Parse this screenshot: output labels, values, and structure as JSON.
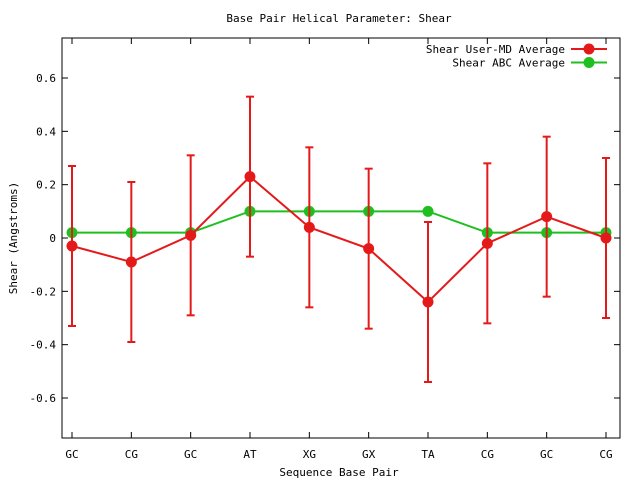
{
  "chart_data": {
    "type": "line",
    "title": "Base Pair Helical Parameter: Shear",
    "xlabel": "Sequence Base Pair",
    "ylabel": "Shear (Angstroms)",
    "categories": [
      "GC",
      "CG",
      "GC",
      "AT",
      "XG",
      "GX",
      "TA",
      "CG",
      "GC",
      "CG"
    ],
    "ylim": [
      -0.75,
      0.75
    ],
    "yticks": [
      -0.6,
      -0.4,
      -0.2,
      0,
      0.2,
      0.4,
      0.6
    ],
    "ytick_labels": [
      "-0.6",
      "-0.4",
      "-0.2",
      "0",
      "0.2",
      "0.4",
      "0.6"
    ],
    "legend_position": "top-right",
    "grid": false,
    "series": [
      {
        "name": "Shear User-MD Average",
        "color": "#e41a1a",
        "values": [
          -0.03,
          -0.09,
          0.01,
          0.23,
          0.04,
          -0.04,
          -0.24,
          -0.02,
          0.08,
          0.0
        ],
        "error": [
          0.3,
          0.3,
          0.3,
          0.3,
          0.3,
          0.3,
          0.3,
          0.3,
          0.3,
          0.3
        ]
      },
      {
        "name": "Shear ABC Average",
        "color": "#1fbf1f",
        "values": [
          0.02,
          0.02,
          0.02,
          0.1,
          0.1,
          0.1,
          0.1,
          0.02,
          0.02,
          0.02
        ]
      }
    ]
  }
}
